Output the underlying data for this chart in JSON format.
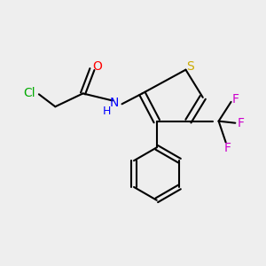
{
  "bg_color": "#eeeeee",
  "atom_colors": {
    "C": "#000000",
    "O": "#ff0000",
    "N": "#0000ff",
    "S": "#ccaa00",
    "Cl": "#00aa00",
    "F": "#cc00cc"
  },
  "figsize": [
    3.0,
    3.0
  ],
  "dpi": 100
}
